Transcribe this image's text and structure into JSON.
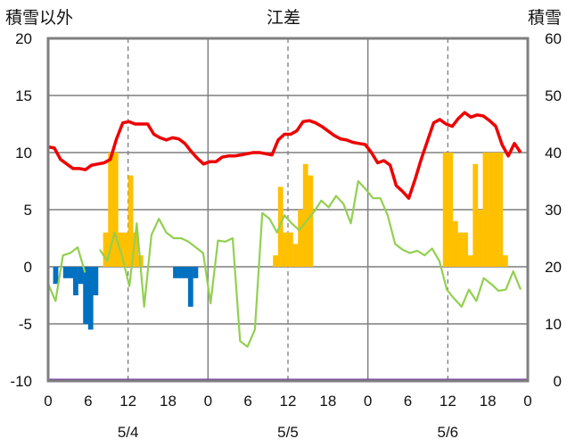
{
  "chart_data": {
    "type": "bar+line",
    "title": "江差",
    "ylabel_left": "積雪以外",
    "ylabel_right": "積雪",
    "ylim_left": [
      -10,
      20
    ],
    "ylim_right": [
      0,
      60
    ],
    "yticks_left": [
      "20",
      "15",
      "10",
      "5",
      "0",
      "-5",
      "-10"
    ],
    "yticks_right": [
      "60",
      "50",
      "40",
      "30",
      "20",
      "10",
      "0"
    ],
    "x_tick_labels": [
      "0",
      "6",
      "12",
      "18",
      "0",
      "6",
      "12",
      "18",
      "0",
      "6",
      "12",
      "18",
      "0"
    ],
    "day_labels": [
      "5/4",
      "5/5",
      "5/6"
    ],
    "grid": "dashed vertical at 12h",
    "colors": {
      "temperature": "#ee0000",
      "precip_pos": "#ffc000",
      "precip_neg": "#0070c0",
      "snow_line": "#92d050",
      "snow_depth": "#7030a0",
      "frame": "#7f7f7f"
    },
    "series": [
      {
        "name": "temperature",
        "kind": "line",
        "values": [
          10.5,
          10.4,
          9.4,
          9,
          8.6,
          8.6,
          8.5,
          8.9,
          9,
          9.1,
          9.4,
          11.2,
          12.6,
          12.7,
          12.5,
          12.5,
          12.5,
          11.6,
          11.3,
          11.1,
          11.3,
          11.2,
          10.8,
          10.1,
          9.5,
          9,
          9.2,
          9.2,
          9.6,
          9.7,
          9.7,
          9.8,
          9.9,
          10,
          10,
          9.9,
          9.8,
          11.1,
          11.6,
          11.6,
          11.9,
          12.7,
          12.8,
          12.6,
          12.3,
          11.9,
          11.5,
          11.2,
          11.1,
          10.9,
          10.8,
          10.7,
          10,
          9.1,
          9.3,
          8.9,
          7.1,
          6.6,
          6,
          7.6,
          9.4,
          11,
          12.6,
          12.9,
          12.5,
          12.3,
          13,
          13.5,
          13.1,
          13.3,
          13.2,
          12.8,
          12.3,
          10.7,
          9.7,
          10.8,
          10
        ]
      },
      {
        "name": "precip_positive",
        "kind": "bar",
        "values": [
          0,
          0,
          0,
          0,
          0,
          0,
          0,
          0,
          0,
          0,
          0,
          3,
          10,
          10,
          3,
          3,
          8,
          3,
          1,
          0,
          0,
          0,
          0,
          0,
          0,
          0,
          0,
          0,
          0,
          0,
          0,
          0,
          0,
          0,
          0,
          0,
          0,
          0,
          0,
          0,
          0,
          0,
          0,
          0,
          0,
          1,
          7,
          3,
          3,
          2,
          5,
          9,
          8,
          0,
          0,
          0,
          0,
          0,
          0,
          0,
          0,
          0,
          0,
          0,
          0,
          0,
          0,
          0,
          0,
          0,
          0,
          0,
          0,
          0,
          0,
          0,
          0,
          0,
          0,
          10,
          10,
          4,
          3,
          3,
          1,
          9,
          5,
          10,
          10,
          10,
          10,
          1,
          0,
          0,
          0,
          0,
          0
        ]
      },
      {
        "name": "precip_negative",
        "kind": "bar",
        "values": [
          0,
          -1.5,
          0,
          -1,
          -1,
          -2.5,
          -1.5,
          -5,
          -5.5,
          -2.5,
          0,
          0,
          0,
          0,
          0,
          0,
          0,
          0,
          0,
          0,
          0,
          0,
          0,
          0,
          0,
          -1,
          -1,
          -1,
          -3.5,
          -1,
          0,
          0,
          0,
          0,
          0,
          0,
          0,
          0,
          0,
          0,
          0,
          0,
          0,
          0,
          0,
          0,
          0,
          0,
          0,
          0,
          0,
          0,
          0,
          0,
          0,
          0,
          0,
          0,
          0,
          0,
          0,
          0,
          0,
          0,
          0,
          0,
          0,
          0,
          0,
          0,
          0,
          0
        ]
      },
      {
        "name": "snow_line",
        "kind": "line",
        "values": [
          -1.5,
          -3,
          1,
          1.2,
          1.7,
          -0.5,
          null,
          1.5,
          0.5,
          3,
          1,
          -1.7,
          3.8,
          -3.5,
          2.8,
          4.2,
          3,
          2.5,
          2.5,
          2.2,
          1.7,
          1.2,
          -3.2,
          2.3,
          2.2,
          2.5,
          -6.5,
          -7,
          -5.5,
          4.7,
          4.2,
          3,
          4.5,
          3.8,
          3.2,
          4,
          4.8,
          5.8,
          5.2,
          6.2,
          5.5,
          3.8,
          7.5,
          6.8,
          6,
          6,
          4.5,
          2,
          1.5,
          1.2,
          1.4,
          1,
          1.6,
          0.5,
          -2,
          -2.8,
          -3.5,
          -2,
          -3,
          -1,
          -1.5,
          -2.1,
          -2,
          -0.4,
          -2
        ]
      },
      {
        "name": "snow_depth",
        "kind": "line",
        "values": [
          0,
          0
        ]
      }
    ]
  }
}
